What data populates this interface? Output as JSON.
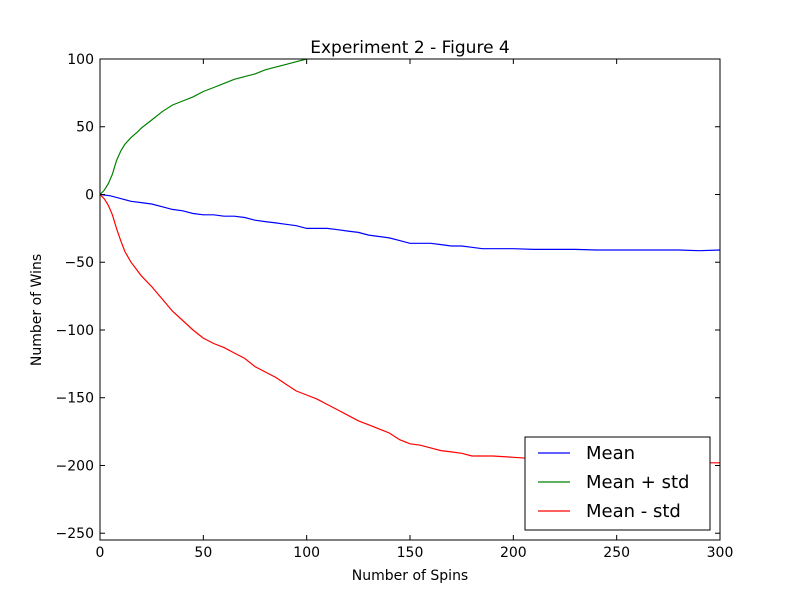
{
  "chart_data": {
    "type": "line",
    "title": "Experiment 2 - Figure 4",
    "xlabel": "Number of Spins",
    "ylabel": "Number of Wins",
    "xlim": [
      0,
      300
    ],
    "ylim": [
      -255,
      100
    ],
    "xticks": [
      0,
      50,
      100,
      150,
      200,
      250,
      300
    ],
    "yticks": [
      100,
      50,
      0,
      -50,
      -100,
      -150,
      -200,
      -250
    ],
    "grid": false,
    "legend_position": "lower-right",
    "series": [
      {
        "name": "Mean",
        "color": "#0000ff",
        "x": [
          0,
          5,
          10,
          15,
          20,
          25,
          30,
          35,
          40,
          45,
          50,
          55,
          60,
          65,
          70,
          75,
          80,
          85,
          90,
          95,
          100,
          105,
          110,
          115,
          120,
          125,
          130,
          135,
          140,
          145,
          150,
          155,
          160,
          165,
          170,
          175,
          180,
          185,
          190,
          200,
          210,
          220,
          230,
          240,
          250,
          260,
          270,
          280,
          290,
          300
        ],
        "y": [
          0,
          -1,
          -3,
          -5,
          -6,
          -7,
          -9,
          -11,
          -12,
          -14,
          -15,
          -15,
          -16,
          -16,
          -17,
          -19,
          -20,
          -21,
          -22,
          -23,
          -25,
          -25,
          -25,
          -26,
          -27,
          -28,
          -30,
          -31,
          -32,
          -34,
          -36,
          -36,
          -36,
          -37,
          -38,
          -38,
          -39,
          -40,
          -40,
          -40,
          -40.5,
          -40.5,
          -40.5,
          -41,
          -41,
          -41,
          -41,
          -41,
          -41.5,
          -41
        ]
      },
      {
        "name": "Mean + std",
        "color": "#008000",
        "x": [
          0,
          2,
          4,
          6,
          8,
          10,
          12,
          15,
          18,
          20,
          25,
          30,
          35,
          40,
          45,
          50,
          55,
          60,
          65,
          70,
          75,
          80,
          85,
          90,
          95,
          100
        ],
        "y": [
          0,
          3,
          8,
          15,
          25,
          32,
          37,
          42,
          46,
          49,
          55,
          61,
          66,
          69,
          72,
          76,
          79,
          82,
          85,
          87,
          89,
          92,
          94,
          96,
          98,
          100
        ]
      },
      {
        "name": "Mean - std",
        "color": "#ff0000",
        "x": [
          0,
          2,
          4,
          6,
          8,
          10,
          12,
          15,
          18,
          20,
          25,
          30,
          35,
          40,
          45,
          50,
          55,
          60,
          65,
          70,
          75,
          80,
          85,
          90,
          95,
          100,
          105,
          110,
          115,
          120,
          125,
          130,
          135,
          140,
          145,
          150,
          155,
          160,
          165,
          170,
          175,
          180,
          185,
          190,
          200,
          210,
          220,
          230,
          240,
          250,
          260,
          270,
          280,
          290,
          300
        ],
        "y": [
          0,
          -3,
          -8,
          -15,
          -25,
          -34,
          -42,
          -50,
          -56,
          -60,
          -68,
          -77,
          -86,
          -93,
          -100,
          -106,
          -110,
          -113,
          -117,
          -121,
          -127,
          -131,
          -135,
          -140,
          -145,
          -148,
          -151,
          -155,
          -159,
          -163,
          -167,
          -170,
          -173,
          -176,
          -181,
          -184,
          -185,
          -187,
          -189,
          -190,
          -191,
          -193,
          -193,
          -193,
          -194,
          -195,
          -196,
          -196.5,
          -197,
          -197,
          -197.5,
          -198,
          -198,
          -198,
          -198
        ]
      }
    ]
  }
}
